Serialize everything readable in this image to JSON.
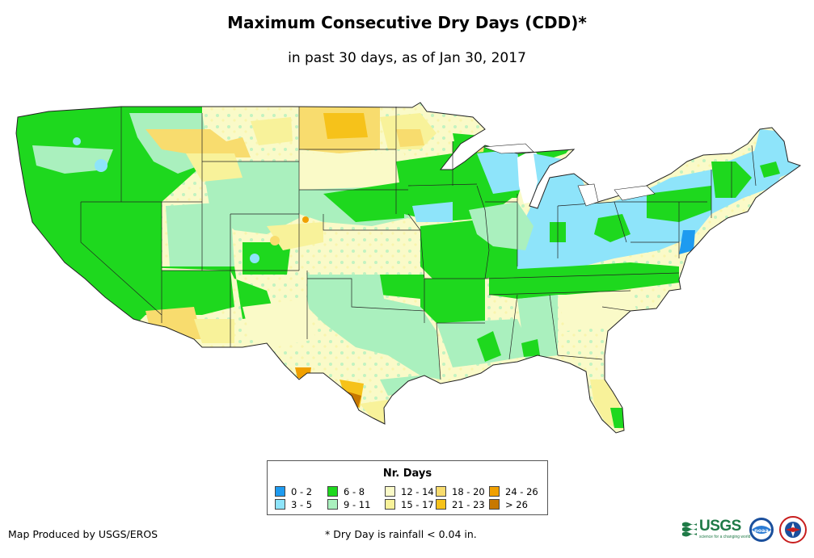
{
  "title": "Maximum Consecutive Dry Days (CDD)*",
  "subtitle": "in past 30 days, as of Jan 30, 2017",
  "legend": {
    "title": "Nr. Days",
    "items": [
      {
        "label": "0 - 2",
        "color": "#1e9bf0"
      },
      {
        "label": "3 - 5",
        "color": "#8ee4fa"
      },
      {
        "label": "6 - 8",
        "color": "#1ed81e"
      },
      {
        "label": "9 - 11",
        "color": "#aaf0be"
      },
      {
        "label": "12 - 14",
        "color": "#fafac8"
      },
      {
        "label": "15 - 17",
        "color": "#f8f29a"
      },
      {
        "label": "18 - 20",
        "color": "#f8dc6e"
      },
      {
        "label": "21 - 23",
        "color": "#f6c21a"
      },
      {
        "label": "24 - 26",
        "color": "#f0a000"
      },
      {
        "label": "> 26",
        "color": "#c87800"
      }
    ]
  },
  "footer": {
    "credit": "Map Produced by USGS/EROS",
    "footnote": "* Dry Day is rainfall < 0.04 in."
  },
  "logos": {
    "usgs": "USGS",
    "usgs_tagline": "science for a changing world",
    "noaa": "noaa"
  },
  "map": {
    "region": "Contiguous United States",
    "base_color": "#fafac8"
  }
}
